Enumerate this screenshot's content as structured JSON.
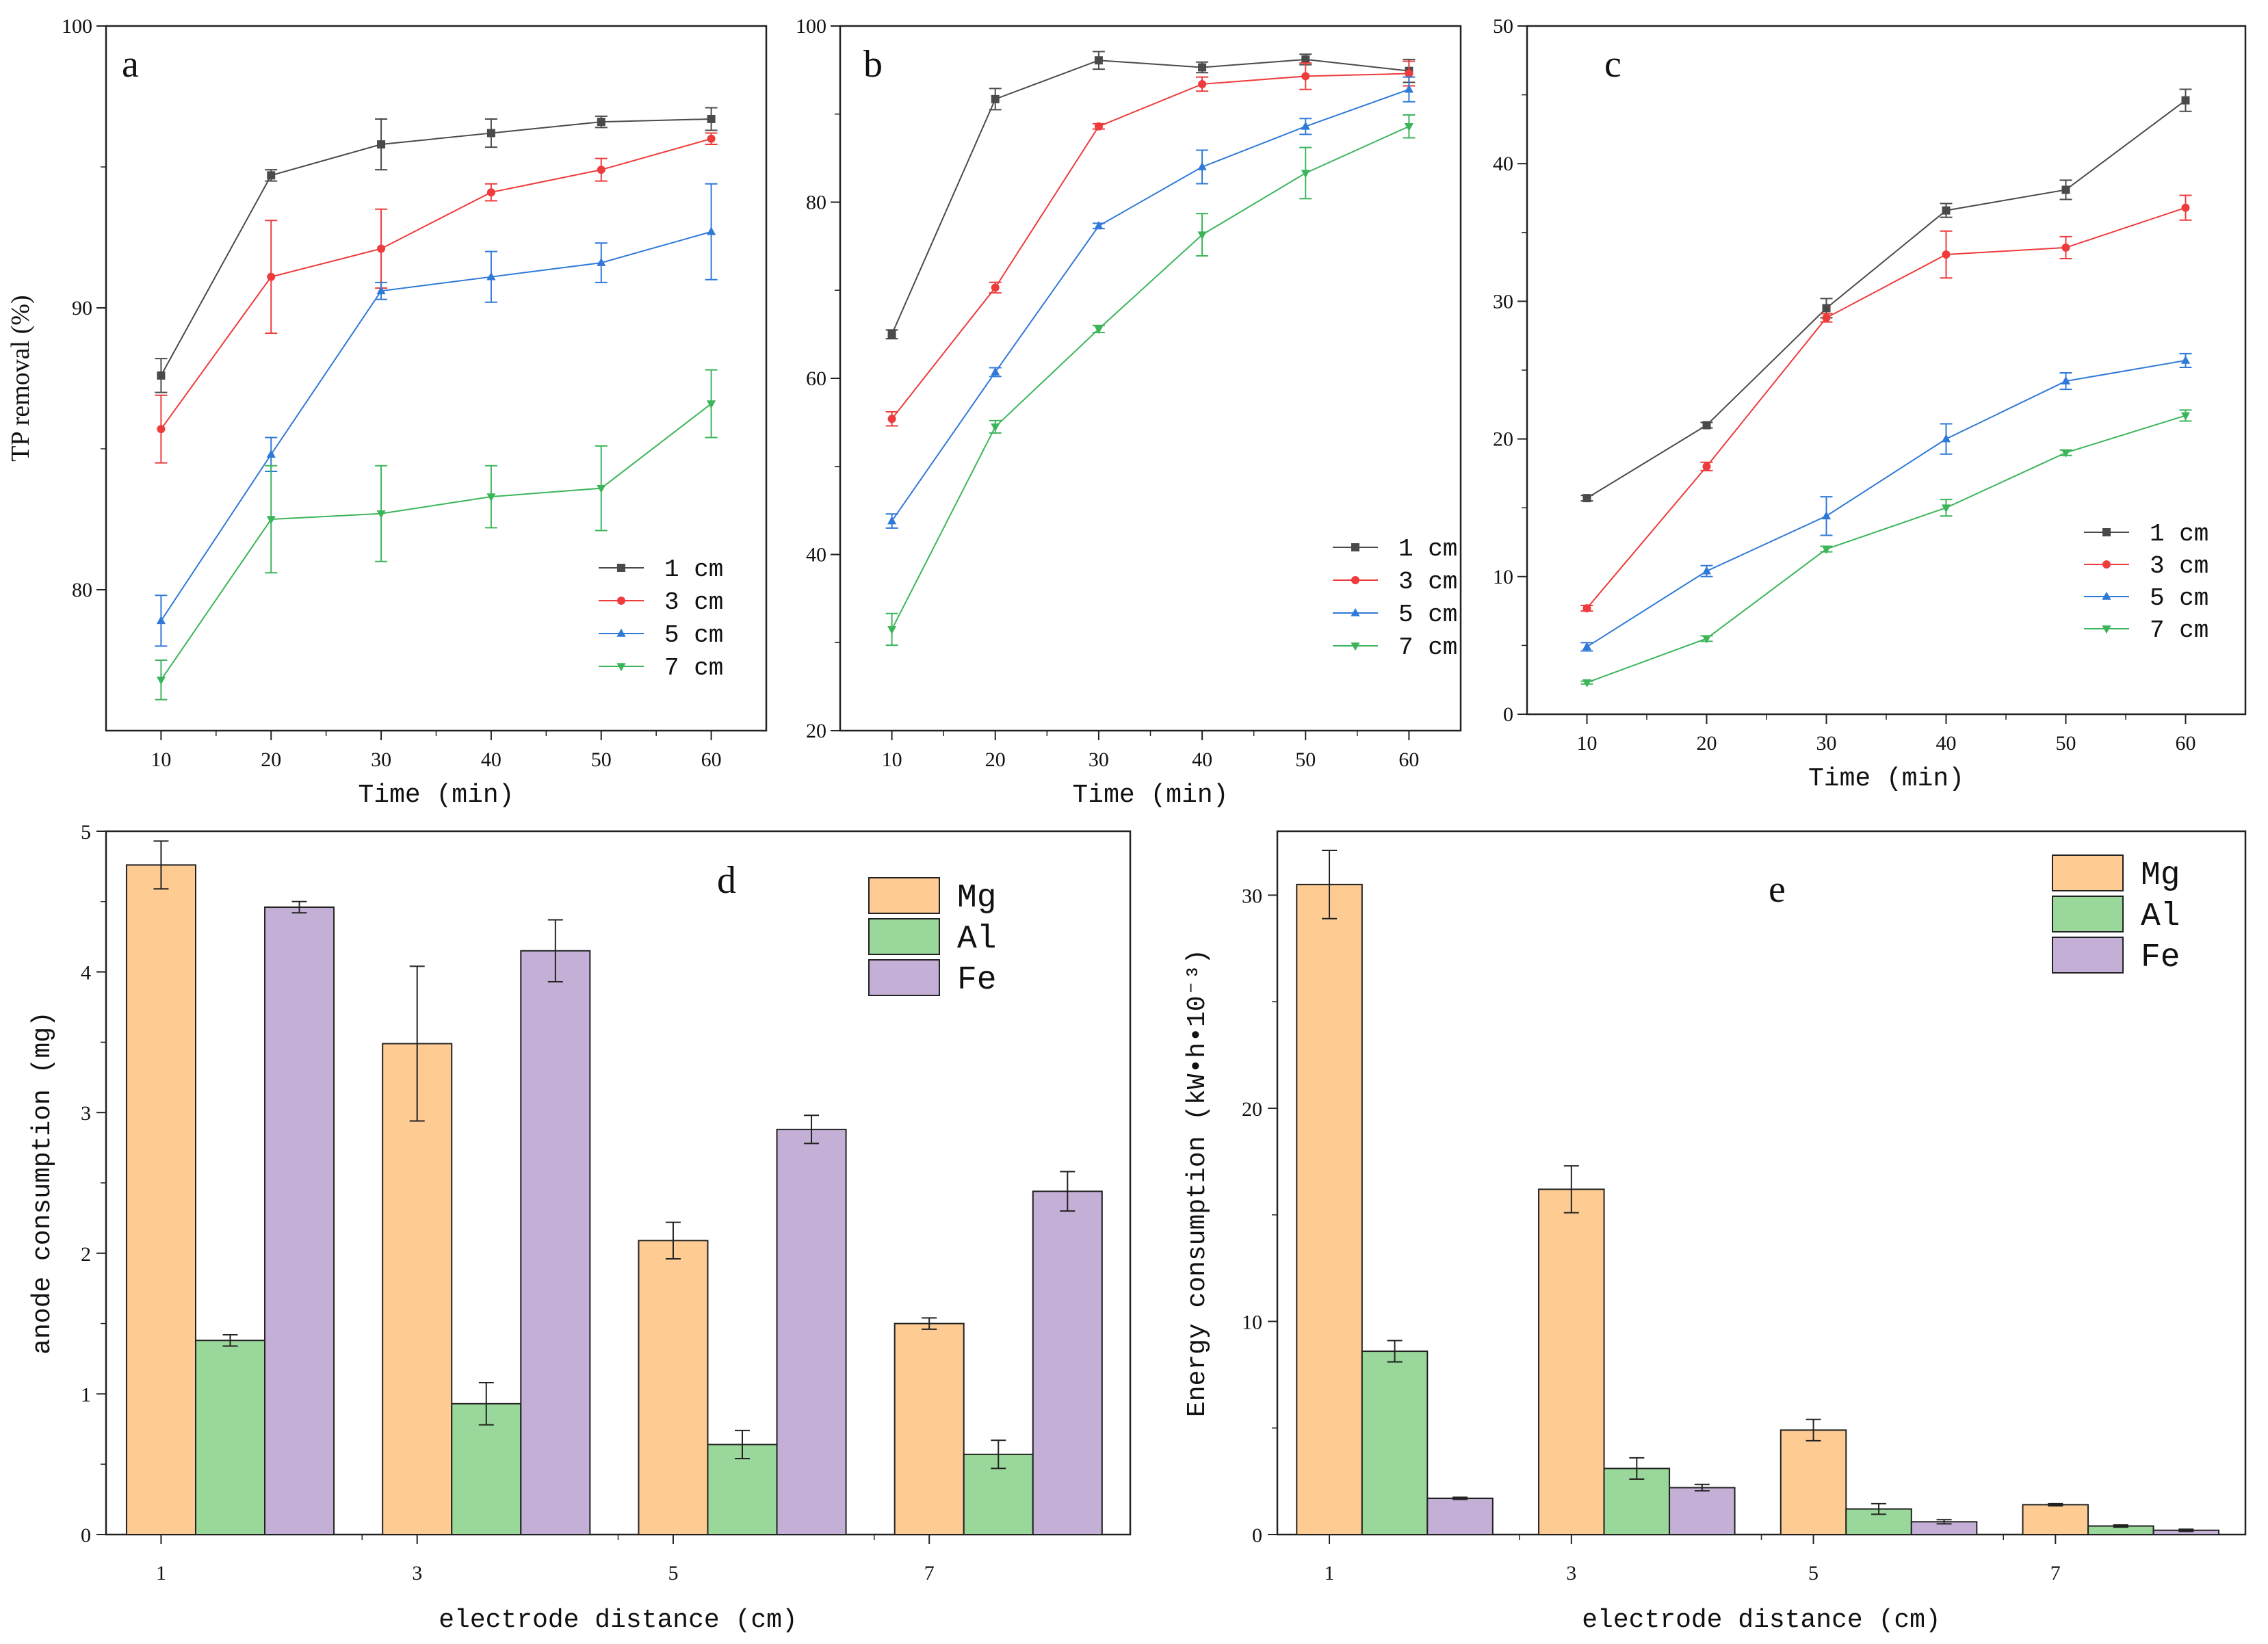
{
  "chart_data": [
    {
      "id": "a",
      "type": "line",
      "panel_label": "a",
      "xlabel": "Time (min)",
      "ylabel": "TP removal (%)",
      "x": [
        10,
        20,
        30,
        40,
        50,
        60
      ],
      "xlim": [
        5,
        65
      ],
      "ylim": [
        75,
        100
      ],
      "yticks": [
        80,
        90,
        100
      ],
      "legend_position": "bottom-right",
      "series": [
        {
          "name": "1 cm",
          "marker": "square",
          "color": "#4a4a4a",
          "values": [
            87.6,
            94.7,
            95.8,
            96.2,
            96.6,
            96.7
          ],
          "errors": [
            0.6,
            0.2,
            0.9,
            0.5,
            0.2,
            0.4
          ]
        },
        {
          "name": "3 cm",
          "marker": "circle",
          "color": "#ee3b3b",
          "values": [
            85.7,
            91.1,
            92.1,
            94.1,
            94.9,
            96.0
          ],
          "errors": [
            1.2,
            2.0,
            1.4,
            0.3,
            0.4,
            0.2
          ]
        },
        {
          "name": "5 cm",
          "marker": "triangle-up",
          "color": "#2f79d8",
          "values": [
            78.9,
            84.8,
            90.6,
            91.1,
            91.6,
            92.7
          ],
          "errors": [
            0.9,
            0.6,
            0.3,
            0.9,
            0.7,
            1.7
          ]
        },
        {
          "name": "7 cm",
          "marker": "triangle-down",
          "color": "#3cb55a",
          "values": [
            76.8,
            82.5,
            82.7,
            83.3,
            83.6,
            86.6
          ],
          "errors": [
            0.7,
            1.9,
            1.7,
            1.1,
            1.5,
            1.2
          ]
        }
      ]
    },
    {
      "id": "b",
      "type": "line",
      "panel_label": "b",
      "xlabel": "Time (min)",
      "ylabel": "",
      "x": [
        10,
        20,
        30,
        40,
        50,
        60
      ],
      "xlim": [
        5,
        65
      ],
      "ylim": [
        20,
        100
      ],
      "yticks": [
        20,
        40,
        60,
        80,
        100
      ],
      "legend_position": "bottom-right",
      "series": [
        {
          "name": "1 cm",
          "marker": "square",
          "color": "#4a4a4a",
          "values": [
            65.0,
            91.7,
            96.1,
            95.3,
            96.2,
            94.9
          ],
          "errors": [
            0.5,
            1.2,
            1.0,
            0.6,
            0.6,
            1.3
          ]
        },
        {
          "name": "3 cm",
          "marker": "circle",
          "color": "#ee3b3b",
          "values": [
            55.4,
            70.3,
            88.6,
            93.4,
            94.3,
            94.6
          ],
          "errors": [
            0.8,
            0.6,
            0.3,
            0.8,
            1.5,
            1.4
          ]
        },
        {
          "name": "5 cm",
          "marker": "triangle-up",
          "color": "#2f79d8",
          "values": [
            43.8,
            60.7,
            77.3,
            84.0,
            88.6,
            92.8
          ],
          "errors": [
            0.8,
            0.5,
            0.3,
            1.9,
            0.9,
            1.4
          ]
        },
        {
          "name": "7 cm",
          "marker": "triangle-down",
          "color": "#3cb55a",
          "values": [
            31.5,
            54.5,
            65.6,
            76.3,
            83.3,
            88.6
          ],
          "errors": [
            1.8,
            0.7,
            0.4,
            2.4,
            2.9,
            1.3
          ]
        }
      ]
    },
    {
      "id": "c",
      "type": "line",
      "panel_label": "c",
      "xlabel": "Time (min)",
      "ylabel": "",
      "x": [
        10,
        20,
        30,
        40,
        50,
        60
      ],
      "xlim": [
        5,
        65
      ],
      "ylim": [
        0,
        50
      ],
      "yticks": [
        0,
        10,
        20,
        30,
        40,
        50
      ],
      "legend_position": "bottom-right",
      "series": [
        {
          "name": "1 cm",
          "marker": "square",
          "color": "#4a4a4a",
          "values": [
            15.7,
            21.0,
            29.5,
            36.6,
            38.1,
            44.6
          ],
          "errors": [
            0.2,
            0.2,
            0.7,
            0.5,
            0.7,
            0.8
          ]
        },
        {
          "name": "3 cm",
          "marker": "circle",
          "color": "#ee3b3b",
          "values": [
            7.7,
            18.0,
            28.8,
            33.4,
            33.9,
            36.8
          ],
          "errors": [
            0.2,
            0.3,
            0.3,
            1.7,
            0.8,
            0.9
          ]
        },
        {
          "name": "5 cm",
          "marker": "triangle-up",
          "color": "#2f79d8",
          "values": [
            4.9,
            10.4,
            14.4,
            20.0,
            24.2,
            25.7
          ],
          "errors": [
            0.3,
            0.4,
            1.4,
            1.1,
            0.6,
            0.5
          ]
        },
        {
          "name": "7 cm",
          "marker": "triangle-down",
          "color": "#3cb55a",
          "values": [
            2.3,
            5.5,
            12.0,
            15.0,
            19.0,
            21.7
          ],
          "errors": [
            0.1,
            0.2,
            0.2,
            0.6,
            0.2,
            0.4
          ]
        }
      ]
    },
    {
      "id": "d",
      "type": "bar",
      "panel_label": "d",
      "xlabel": "electrode distance (cm)",
      "ylabel": "anode consumption (mg)",
      "categories": [
        "1",
        "3",
        "5",
        "7"
      ],
      "ylim": [
        0,
        5
      ],
      "yticks": [
        0,
        1,
        2,
        3,
        4,
        5
      ],
      "legend_position": "top-right",
      "series": [
        {
          "name": "Mg",
          "color": "#fecb93",
          "values": [
            4.76,
            3.49,
            2.09,
            1.5
          ],
          "errors": [
            0.17,
            0.55,
            0.13,
            0.04
          ]
        },
        {
          "name": "Al",
          "color": "#99d89a",
          "values": [
            1.38,
            0.93,
            0.64,
            0.57
          ],
          "errors": [
            0.04,
            0.15,
            0.1,
            0.1
          ]
        },
        {
          "name": "Fe",
          "color": "#c4b0d6",
          "values": [
            4.46,
            4.15,
            2.88,
            2.44
          ],
          "errors": [
            0.04,
            0.22,
            0.1,
            0.14
          ]
        }
      ]
    },
    {
      "id": "e",
      "type": "bar",
      "panel_label": "e",
      "xlabel": "electrode distance (cm)",
      "ylabel": "Energy consumption (kW•h•10⁻³)",
      "categories": [
        "1",
        "3",
        "5",
        "7"
      ],
      "ylim": [
        0,
        33
      ],
      "yticks": [
        0,
        10,
        20,
        30
      ],
      "legend_position": "top-right",
      "series": [
        {
          "name": "Mg",
          "color": "#fecb93",
          "values": [
            30.5,
            16.2,
            4.9,
            1.4
          ],
          "errors": [
            1.6,
            1.1,
            0.5,
            0.05
          ]
        },
        {
          "name": "Al",
          "color": "#99d89a",
          "values": [
            8.6,
            3.1,
            1.2,
            0.4
          ],
          "errors": [
            0.5,
            0.5,
            0.25,
            0.05
          ]
        },
        {
          "name": "Fe",
          "color": "#c4b0d6",
          "values": [
            1.7,
            2.2,
            0.6,
            0.2
          ],
          "errors": [
            0.05,
            0.15,
            0.1,
            0.05
          ]
        }
      ]
    }
  ]
}
